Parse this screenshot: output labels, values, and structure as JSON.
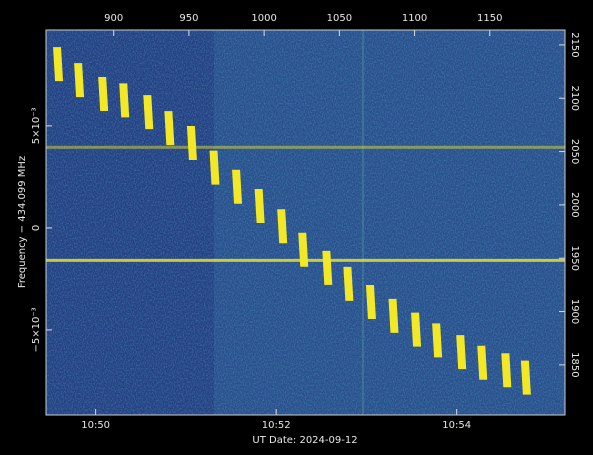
{
  "chart_data": {
    "type": "waterfall",
    "xlabel": "UT Date: 2024-09-12",
    "ylabel": "Frequency − 434.099 MHz",
    "xlim": [
      855,
      1200
    ],
    "xticks": [
      900,
      950,
      1000,
      1050,
      1100,
      1150
    ],
    "x2ticks": [
      {
        "value": 888,
        "label": "10:50"
      },
      {
        "value": 1008,
        "label": "10:52"
      },
      {
        "value": 1128,
        "label": "10:54"
      }
    ],
    "ylim": [
      1803,
      2164
    ],
    "yticks": [
      1850,
      1900,
      1950,
      2000,
      2050,
      2100,
      2150
    ],
    "y2lim": [
      -0.00917,
      0.0097
    ],
    "y2ticks": [
      {
        "value": -0.005,
        "label": "−5×10⁻³"
      },
      0,
      {
        "value": 0.005,
        "label": "5×10⁻³"
      }
    ],
    "color": "#f2e826",
    "background": "#2a4e8d",
    "x": [
      863,
      877,
      893,
      907,
      923,
      937,
      952,
      967,
      982,
      997,
      1012,
      1026,
      1042,
      1056,
      1071,
      1086,
      1101,
      1115,
      1131,
      1145,
      1161,
      1174
    ],
    "values": [
      2132,
      2117,
      2104,
      2098,
      2087,
      2072,
      2058,
      2035,
      2017,
      1999,
      1980,
      1958,
      1941,
      1926,
      1909,
      1896,
      1883,
      1873,
      1862,
      1852,
      1845,
      1838
    ],
    "spurs": [
      1948,
      2054
    ]
  }
}
